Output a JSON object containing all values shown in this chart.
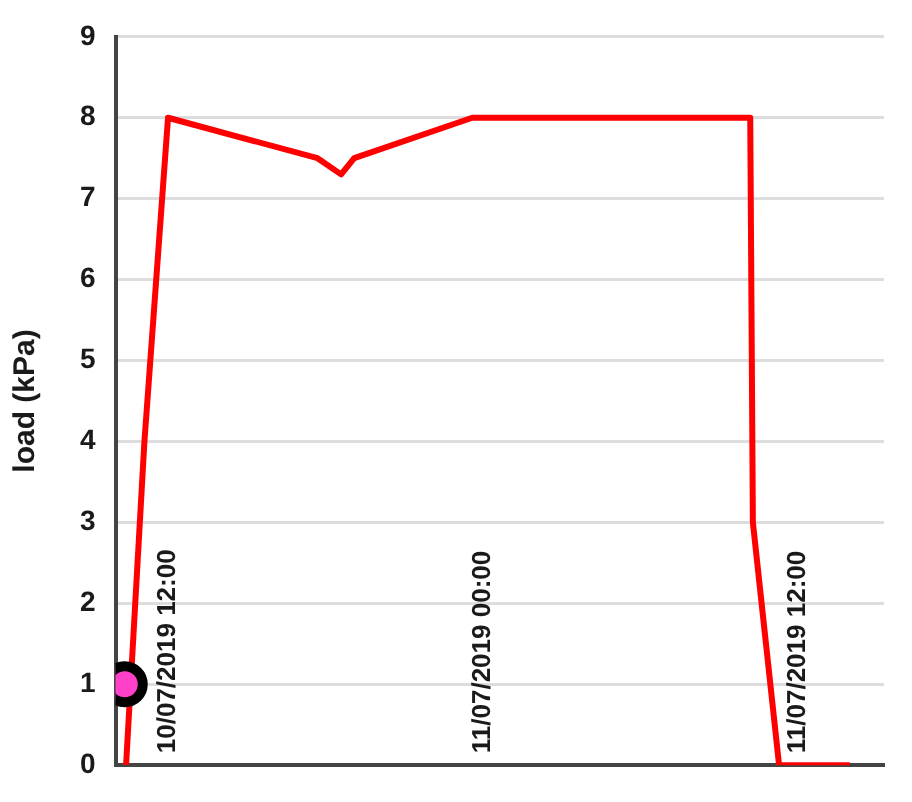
{
  "chart_data": {
    "type": "line",
    "ylabel": "load (kPa)",
    "xlim": [
      "2019-07-10T10:00",
      "2019-07-11T15:18"
    ],
    "xticks": [
      {
        "value": "2019-07-10T12:00",
        "label": "10/07/2019 12:00"
      },
      {
        "value": "2019-07-11T00:00",
        "label": "11/07/2019 00:00"
      },
      {
        "value": "2019-07-11T12:00",
        "label": "11/07/2019 12:00"
      }
    ],
    "ylim": [
      0,
      9
    ],
    "yticks": [
      0,
      1,
      2,
      3,
      4,
      5,
      6,
      7,
      8,
      9
    ],
    "grid": "y",
    "legend": false,
    "series": [
      {
        "color": "#ff0000",
        "marker": "none",
        "x": [
          "2019-07-10T10:24",
          "2019-07-10T11:06",
          "2019-07-10T12:00",
          "2019-07-10T17:42",
          "2019-07-10T18:36",
          "2019-07-10T19:06",
          "2019-07-10T23:36",
          "2019-07-11T10:12",
          "2019-07-11T10:18",
          "2019-07-11T11:18",
          "2019-07-11T14:00"
        ],
        "values": [
          0,
          4,
          8,
          7.5,
          7.3,
          7.5,
          8,
          8,
          3,
          0,
          0
        ]
      },
      {
        "type": "scatter",
        "color": "#ff40c8",
        "marker": "circle",
        "x": [
          "2019-07-10T10:21"
        ],
        "values": [
          1
        ]
      }
    ]
  }
}
